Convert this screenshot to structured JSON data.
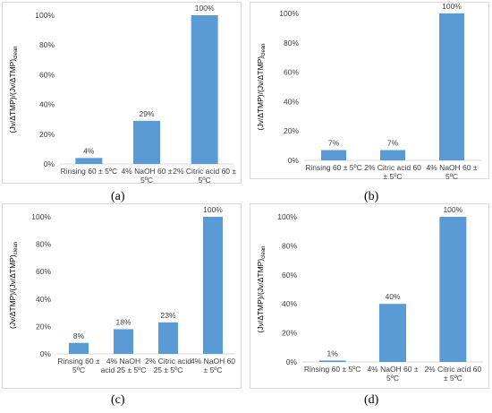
{
  "colors": {
    "bar": "#5b9bd5",
    "axis": "#d9d9d9",
    "text": "#404040"
  },
  "chart_data": [
    {
      "type": "bar",
      "panel_label": "(a)",
      "ylabel": "(Jv/ΔTMP)/(Jv/ΔTMP)clean",
      "categories": [
        [
          "Rinsing 60 ± 5ºC"
        ],
        [
          "4% NaOH 60 ±",
          "5ºC"
        ],
        [
          "2% Citric acid 60 ±",
          "5ºC"
        ]
      ],
      "values": [
        4,
        29,
        100
      ],
      "value_labels": [
        "4%",
        "29%",
        "100%"
      ],
      "yticks": [
        "0%",
        "20%",
        "40%",
        "60%",
        "80%",
        "100%"
      ],
      "ylim": [
        0,
        100
      ],
      "grid": false
    },
    {
      "type": "bar",
      "panel_label": "(b)",
      "ylabel": "(Jv/ΔTMP)/(Jv/ΔTMP)clean",
      "categories": [
        [
          "Rinsing 60 ± 5ºC"
        ],
        [
          "2% Citric acid 60",
          "± 5ºC"
        ],
        [
          "4% NaOH 60 ±",
          "5ºC"
        ]
      ],
      "values": [
        7,
        7,
        100
      ],
      "value_labels": [
        "7%",
        "7%",
        "100%"
      ],
      "yticks": [
        "0%",
        "20%",
        "40%",
        "60%",
        "80%",
        "100%"
      ],
      "ylim": [
        0,
        100
      ],
      "grid": false
    },
    {
      "type": "bar",
      "panel_label": "(c)",
      "ylabel": "(Jv/ΔTMP)/(Jv/ΔTMP)clean",
      "categories": [
        [
          "Rinsing 60 ±",
          "5ºC"
        ],
        [
          "4% NaOH",
          "acid 25 ± 5ºC"
        ],
        [
          "2% Citric acid",
          "25 ± 5ºC"
        ],
        [
          "4% NaOH 60",
          "± 5ºC"
        ]
      ],
      "values": [
        8,
        18,
        23,
        100
      ],
      "value_labels": [
        "8%",
        "18%",
        "23%",
        "100%"
      ],
      "yticks": [
        "0%",
        "20%",
        "40%",
        "60%",
        "80%",
        "100%"
      ],
      "ylim": [
        0,
        100
      ],
      "grid": false
    },
    {
      "type": "bar",
      "panel_label": "(d)",
      "ylabel": "(Jv/ΔTMP)/(Jv/ΔTMP)clean",
      "categories": [
        [
          "Rinsing 60 ± 5ºC"
        ],
        [
          "4% NaOH 60 ±",
          "5ºC"
        ],
        [
          "2% Citric acid 60",
          "± 5ºC"
        ]
      ],
      "values": [
        1,
        40,
        100
      ],
      "value_labels": [
        "1%",
        "40%",
        "100%"
      ],
      "yticks": [
        "0%",
        "20%",
        "40%",
        "60%",
        "80%",
        "100%"
      ],
      "ylim": [
        0,
        100
      ],
      "grid": false
    }
  ]
}
